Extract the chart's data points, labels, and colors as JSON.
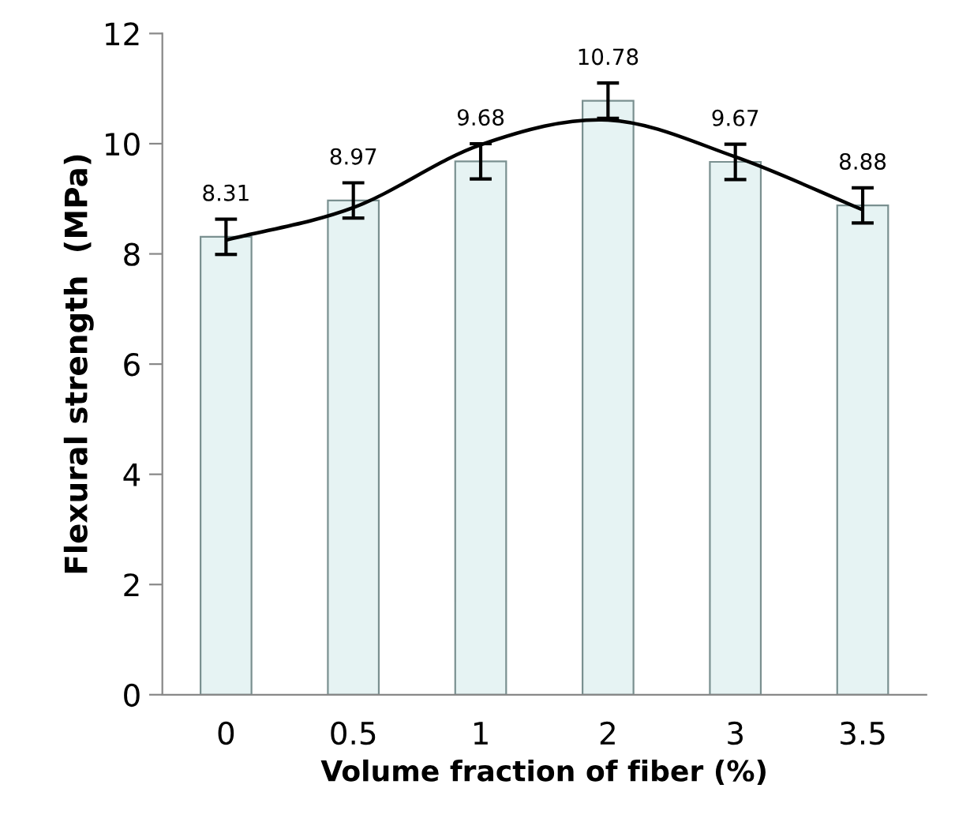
{
  "chart_data": {
    "type": "bar",
    "xlabel": "Volume fraction of fiber (%)",
    "ylabel": "Flexural strength  (MPa)",
    "categories": [
      "0",
      "0.5",
      "1",
      "2",
      "3",
      "3.5"
    ],
    "series": [
      {
        "color": "#e6f3f3",
        "values": [
          8.31,
          8.97,
          9.68,
          10.78,
          9.67,
          8.88
        ],
        "errors": [
          0.32,
          0.32,
          0.32,
          0.32,
          0.32,
          0.32
        ],
        "value_labels": [
          "8.31",
          "8.97",
          "9.68",
          "10.78",
          "9.67",
          "8.88"
        ]
      },
      {
        "type": "line",
        "color": "#000000",
        "values": [
          8.25,
          8.84,
          9.98,
          10.43,
          9.76,
          8.8
        ]
      }
    ],
    "ylim": [
      0,
      12
    ],
    "yticks": [
      0,
      2,
      4,
      6,
      8,
      10,
      12
    ],
    "grid": false,
    "legend": false
  }
}
